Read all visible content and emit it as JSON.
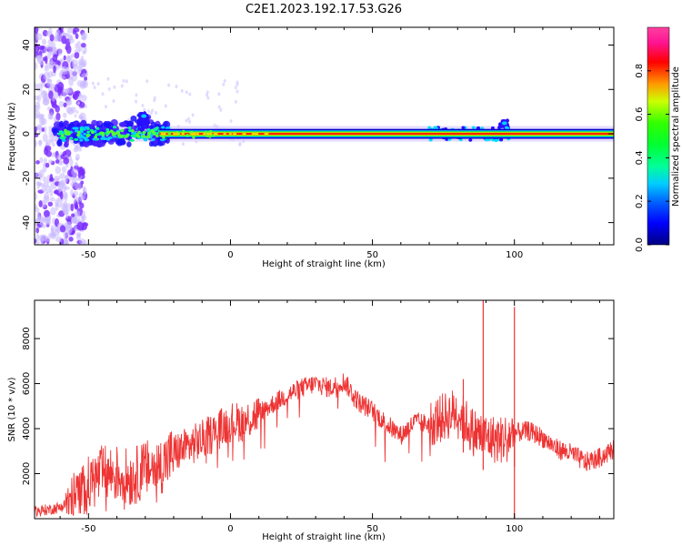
{
  "title": "C2E1.2023.192.17.53.G26",
  "chart_data": [
    {
      "type": "heatmap",
      "xlabel": "Height of straight line (km)",
      "ylabel": "Frequency (Hz)",
      "xlim": [
        -69,
        135
      ],
      "ylim": [
        -50,
        48
      ],
      "xticks": [
        -50,
        0,
        50,
        100
      ],
      "yticks": [
        -40,
        -20,
        0,
        20,
        40
      ],
      "colorbar": {
        "label": "Normalized spectral amplitude",
        "range": [
          0,
          1
        ],
        "ticks": [
          "0.0",
          "0.2",
          "0.4",
          "0.6",
          "0.8"
        ],
        "colormap": "gist_ncar",
        "colors": [
          "#000080",
          "#0033ff",
          "#00ccff",
          "#00ff99",
          "#33ff00",
          "#ccff00",
          "#ff9900",
          "#ff0000",
          "#ff1493",
          "#ff80c0"
        ]
      },
      "peak_frequency_hz": 0,
      "noise_region_km": [
        -69,
        -57
      ],
      "bursts": [
        {
          "x": -30,
          "f_max": 10
        },
        {
          "x": 97,
          "f_max": 6
        }
      ]
    },
    {
      "type": "line",
      "xlabel": "Height of straight line (km)",
      "ylabel": "SNR (10 * v/v)",
      "xlim": [
        -69,
        135
      ],
      "ylim": [
        0,
        9700
      ],
      "xticks": [
        -50,
        0,
        50,
        100
      ],
      "yticks": [
        2000,
        4000,
        6000,
        8000
      ],
      "color": "#ee3333",
      "x": [
        -69,
        -60,
        -55,
        -50,
        -45,
        -40,
        -35,
        -30,
        -25,
        -20,
        -15,
        -10,
        -5,
        0,
        5,
        10,
        15,
        20,
        25,
        30,
        35,
        40,
        45,
        50,
        55,
        60,
        65,
        70,
        75,
        80,
        85,
        90,
        95,
        100,
        105,
        110,
        115,
        120,
        125,
        130,
        135
      ],
      "y": [
        300,
        500,
        900,
        1500,
        2000,
        2000,
        1800,
        2200,
        2300,
        2900,
        3200,
        3500,
        3900,
        4300,
        4300,
        4700,
        5100,
        5500,
        5800,
        6000,
        5800,
        6100,
        5200,
        4800,
        4200,
        3700,
        4300,
        4200,
        4500,
        4800,
        3900,
        3600,
        3500,
        3800,
        3900,
        3600,
        3100,
        2900,
        2500,
        2700,
        3100
      ],
      "spikes": [
        {
          "x": 82,
          "y": 6200
        },
        {
          "x": 89,
          "y": 9700
        },
        {
          "x": 100,
          "y": 9400
        }
      ]
    }
  ]
}
